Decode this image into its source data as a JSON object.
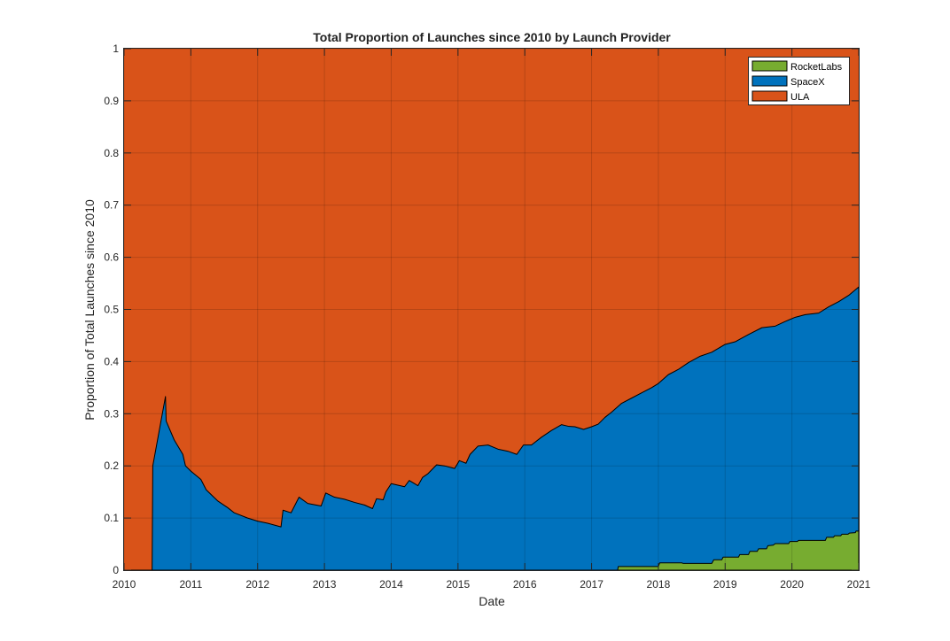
{
  "chart_data": {
    "type": "area",
    "title": "Total Proportion of Launches since 2010 by Launch Provider",
    "xlabel": "Date",
    "ylabel": "Proportion of Total Launches since 2010",
    "xlim": [
      2010,
      2021
    ],
    "ylim": [
      0,
      1
    ],
    "xticks": [
      "2010",
      "2011",
      "2012",
      "2013",
      "2014",
      "2015",
      "2016",
      "2017",
      "2018",
      "2019",
      "2020",
      "2021"
    ],
    "yticks": [
      "0",
      "0.1",
      "0.2",
      "0.3",
      "0.4",
      "0.5",
      "0.6",
      "0.7",
      "0.8",
      "0.9",
      "1"
    ],
    "grid": true,
    "stacked": true,
    "legend_position": "top-right",
    "legend": [
      "RocketLabs",
      "SpaceX",
      "ULA"
    ],
    "series": [
      {
        "name": "RocketLabs",
        "color": "#77AC30",
        "points": [
          [
            2010.0,
            0
          ],
          [
            2017.39,
            0
          ],
          [
            2017.4,
            0.007
          ],
          [
            2018.0,
            0.007
          ],
          [
            2018.02,
            0.014
          ],
          [
            2018.35,
            0.014
          ],
          [
            2018.37,
            0.013
          ],
          [
            2018.8,
            0.013
          ],
          [
            2018.83,
            0.02
          ],
          [
            2018.95,
            0.02
          ],
          [
            2018.97,
            0.025
          ],
          [
            2019.2,
            0.025
          ],
          [
            2019.22,
            0.03
          ],
          [
            2019.35,
            0.03
          ],
          [
            2019.37,
            0.036
          ],
          [
            2019.48,
            0.036
          ],
          [
            2019.5,
            0.041
          ],
          [
            2019.62,
            0.041
          ],
          [
            2019.64,
            0.047
          ],
          [
            2019.72,
            0.048
          ],
          [
            2019.75,
            0.051
          ],
          [
            2019.95,
            0.051
          ],
          [
            2019.97,
            0.055
          ],
          [
            2020.08,
            0.055
          ],
          [
            2020.1,
            0.057
          ],
          [
            2020.5,
            0.057
          ],
          [
            2020.52,
            0.063
          ],
          [
            2020.62,
            0.063
          ],
          [
            2020.64,
            0.066
          ],
          [
            2020.73,
            0.066
          ],
          [
            2020.75,
            0.069
          ],
          [
            2020.84,
            0.069
          ],
          [
            2020.86,
            0.071
          ],
          [
            2020.95,
            0.072
          ],
          [
            2020.96,
            0.075
          ],
          [
            2021.0,
            0.075
          ]
        ]
      },
      {
        "name": "SpaceX",
        "color": "#0072BD",
        "points": [
          [
            2010.0,
            0
          ],
          [
            2010.42,
            0
          ],
          [
            2010.43,
            0.2
          ],
          [
            2010.62,
            0.333
          ],
          [
            2010.63,
            0.286
          ],
          [
            2010.75,
            0.25
          ],
          [
            2010.88,
            0.222
          ],
          [
            2010.92,
            0.2
          ],
          [
            2011.0,
            0.19
          ],
          [
            2011.15,
            0.174
          ],
          [
            2011.23,
            0.154
          ],
          [
            2011.4,
            0.133
          ],
          [
            2011.55,
            0.12
          ],
          [
            2011.65,
            0.11
          ],
          [
            2011.85,
            0.1
          ],
          [
            2012.0,
            0.094
          ],
          [
            2012.15,
            0.09
          ],
          [
            2012.35,
            0.083
          ],
          [
            2012.38,
            0.115
          ],
          [
            2012.5,
            0.11
          ],
          [
            2012.62,
            0.14
          ],
          [
            2012.75,
            0.128
          ],
          [
            2012.95,
            0.123
          ],
          [
            2013.02,
            0.148
          ],
          [
            2013.15,
            0.14
          ],
          [
            2013.3,
            0.136
          ],
          [
            2013.45,
            0.13
          ],
          [
            2013.6,
            0.125
          ],
          [
            2013.72,
            0.118
          ],
          [
            2013.78,
            0.137
          ],
          [
            2013.88,
            0.135
          ],
          [
            2013.92,
            0.15
          ],
          [
            2014.0,
            0.166
          ],
          [
            2014.2,
            0.16
          ],
          [
            2014.27,
            0.172
          ],
          [
            2014.4,
            0.162
          ],
          [
            2014.47,
            0.178
          ],
          [
            2014.55,
            0.185
          ],
          [
            2014.68,
            0.202
          ],
          [
            2014.8,
            0.2
          ],
          [
            2014.95,
            0.195
          ],
          [
            2015.02,
            0.21
          ],
          [
            2015.12,
            0.205
          ],
          [
            2015.18,
            0.222
          ],
          [
            2015.3,
            0.238
          ],
          [
            2015.45,
            0.24
          ],
          [
            2015.6,
            0.232
          ],
          [
            2015.75,
            0.228
          ],
          [
            2015.88,
            0.222
          ],
          [
            2015.98,
            0.24
          ],
          [
            2016.1,
            0.24
          ],
          [
            2016.25,
            0.255
          ],
          [
            2016.4,
            0.268
          ],
          [
            2016.55,
            0.279
          ],
          [
            2016.65,
            0.276
          ],
          [
            2016.75,
            0.275
          ],
          [
            2016.88,
            0.27
          ],
          [
            2017.0,
            0.275
          ],
          [
            2017.1,
            0.28
          ],
          [
            2017.2,
            0.293
          ],
          [
            2017.3,
            0.303
          ],
          [
            2017.45,
            0.32
          ],
          [
            2017.6,
            0.33
          ],
          [
            2017.75,
            0.34
          ],
          [
            2017.9,
            0.35
          ],
          [
            2018.0,
            0.358
          ],
          [
            2018.15,
            0.375
          ],
          [
            2018.3,
            0.385
          ],
          [
            2018.45,
            0.398
          ],
          [
            2018.62,
            0.41
          ],
          [
            2018.8,
            0.418
          ],
          [
            2019.0,
            0.433
          ],
          [
            2019.15,
            0.438
          ],
          [
            2019.35,
            0.452
          ],
          [
            2019.55,
            0.465
          ],
          [
            2019.75,
            0.468
          ],
          [
            2019.9,
            0.477
          ],
          [
            2020.05,
            0.485
          ],
          [
            2020.2,
            0.49
          ],
          [
            2020.4,
            0.493
          ],
          [
            2020.55,
            0.505
          ],
          [
            2020.7,
            0.515
          ],
          [
            2020.85,
            0.527
          ],
          [
            2021.0,
            0.543
          ]
        ]
      },
      {
        "name": "ULA",
        "color": "#D95319"
      }
    ]
  }
}
